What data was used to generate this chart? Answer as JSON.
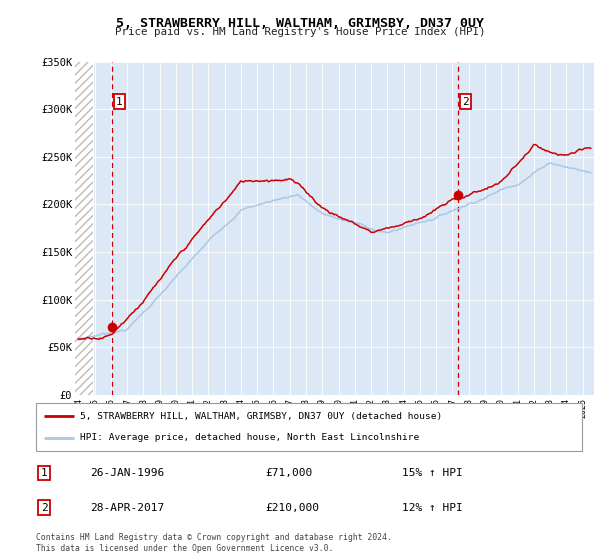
{
  "title": "5, STRAWBERRY HILL, WALTHAM, GRIMSBY, DN37 0UY",
  "subtitle": "Price paid vs. HM Land Registry's House Price Index (HPI)",
  "ylim": [
    0,
    350000
  ],
  "xlim_start": 1993.8,
  "xlim_end": 2025.7,
  "hpi_color": "#a8c8e8",
  "price_color": "#cc0000",
  "point1_x": 1996.07,
  "point1_y": 71000,
  "point2_x": 2017.33,
  "point2_y": 210000,
  "legend_label1": "5, STRAWBERRY HILL, WALTHAM, GRIMSBY, DN37 0UY (detached house)",
  "legend_label2": "HPI: Average price, detached house, North East Lincolnshire",
  "table_row1": [
    "1",
    "26-JAN-1996",
    "£71,000",
    "15% ↑ HPI"
  ],
  "table_row2": [
    "2",
    "28-APR-2017",
    "£210,000",
    "12% ↑ HPI"
  ],
  "footer": "Contains HM Land Registry data © Crown copyright and database right 2024.\nThis data is licensed under the Open Government Licence v3.0.",
  "background_chart": "#dce8f5",
  "hatch_end": 1994.92
}
